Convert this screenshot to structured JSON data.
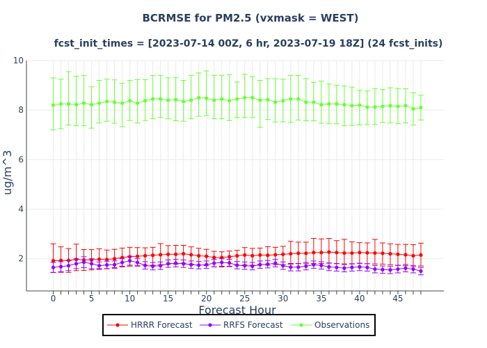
{
  "chart_data": {
    "type": "line",
    "title": "BCRMSE for PM2.5 (vxmask = WEST)",
    "subtitle": "fcst_init_times = [2023-07-14 00Z, 6 hr, 2023-07-19 18Z] (24 fcst_inits)",
    "xlabel": "Forecast Hour",
    "ylabel": "ug/m^3",
    "xlim": [
      -3.5,
      51
    ],
    "ylim": [
      0.7,
      10
    ],
    "xticks": [
      0,
      5,
      10,
      15,
      20,
      25,
      30,
      35,
      40,
      45
    ],
    "yticks": [
      2,
      4,
      6,
      8,
      10
    ],
    "grid": true,
    "legend_position": "bottom-center",
    "x": [
      0,
      1,
      2,
      3,
      4,
      5,
      6,
      7,
      8,
      9,
      10,
      11,
      12,
      13,
      14,
      15,
      16,
      17,
      18,
      19,
      20,
      21,
      22,
      23,
      24,
      25,
      26,
      27,
      28,
      29,
      30,
      31,
      32,
      33,
      34,
      35,
      36,
      37,
      38,
      39,
      40,
      41,
      42,
      43,
      44,
      45,
      46,
      47,
      48
    ],
    "series": [
      {
        "name": "HRRR Forecast",
        "color": "#ff0000",
        "values": [
          1.92,
          1.93,
          1.93,
          1.97,
          1.95,
          1.95,
          1.98,
          1.97,
          2.0,
          2.05,
          2.08,
          2.1,
          2.12,
          2.14,
          2.16,
          2.18,
          2.18,
          2.2,
          2.16,
          2.12,
          2.1,
          2.05,
          2.05,
          2.08,
          2.12,
          2.15,
          2.12,
          2.15,
          2.14,
          2.16,
          2.18,
          2.2,
          2.22,
          2.22,
          2.25,
          2.25,
          2.27,
          2.25,
          2.23,
          2.23,
          2.25,
          2.24,
          2.23,
          2.22,
          2.2,
          2.18,
          2.16,
          2.12,
          2.15
        ],
        "err_low": [
          0.48,
          0.48,
          0.48,
          0.45,
          0.42,
          0.4,
          0.38,
          0.38,
          0.36,
          0.38,
          0.38,
          0.38,
          0.38,
          0.4,
          0.4,
          0.4,
          0.4,
          0.38,
          0.38,
          0.38,
          0.38,
          0.38,
          0.38,
          0.38,
          0.38,
          0.4,
          0.38,
          0.38,
          0.4,
          0.4,
          0.42,
          0.42,
          0.42,
          0.42,
          0.44,
          0.44,
          0.44,
          0.44,
          0.44,
          0.44,
          0.44,
          0.44,
          0.44,
          0.44,
          0.44,
          0.44,
          0.44,
          0.44,
          0.44
        ],
        "err_high": [
          0.68,
          0.55,
          0.48,
          0.62,
          0.42,
          0.42,
          0.42,
          0.38,
          0.38,
          0.38,
          0.38,
          0.35,
          0.32,
          0.32,
          0.45,
          0.35,
          0.36,
          0.34,
          0.32,
          0.3,
          0.28,
          0.25,
          0.23,
          0.23,
          0.22,
          0.3,
          0.3,
          0.28,
          0.35,
          0.3,
          0.32,
          0.5,
          0.45,
          0.45,
          0.57,
          0.55,
          0.55,
          0.48,
          0.55,
          0.45,
          0.4,
          0.4,
          0.55,
          0.42,
          0.4,
          0.4,
          0.42,
          0.45,
          0.48
        ]
      },
      {
        "name": "RRFS Forecast",
        "color": "#8f00ff",
        "values": [
          1.65,
          1.68,
          1.72,
          1.8,
          1.86,
          1.8,
          1.72,
          1.75,
          1.76,
          1.85,
          1.92,
          1.85,
          1.73,
          1.7,
          1.72,
          1.8,
          1.82,
          1.8,
          1.76,
          1.74,
          1.76,
          1.82,
          1.85,
          1.83,
          1.74,
          1.72,
          1.7,
          1.76,
          1.78,
          1.82,
          1.72,
          1.66,
          1.66,
          1.7,
          1.76,
          1.73,
          1.67,
          1.65,
          1.62,
          1.65,
          1.67,
          1.65,
          1.58,
          1.56,
          1.55,
          1.58,
          1.62,
          1.58,
          1.5
        ],
        "err": [
          0.2,
          0.2,
          0.2,
          0.2,
          0.22,
          0.2,
          0.15,
          0.15,
          0.15,
          0.15,
          0.18,
          0.15,
          0.15,
          0.15,
          0.15,
          0.15,
          0.15,
          0.15,
          0.15,
          0.15,
          0.15,
          0.15,
          0.15,
          0.15,
          0.15,
          0.15,
          0.15,
          0.15,
          0.15,
          0.15,
          0.15,
          0.15,
          0.15,
          0.15,
          0.15,
          0.15,
          0.15,
          0.15,
          0.15,
          0.15,
          0.15,
          0.15,
          0.15,
          0.15,
          0.15,
          0.15,
          0.15,
          0.15,
          0.15
        ]
      },
      {
        "name": "Observations",
        "color": "#66ff33",
        "values": [
          8.2,
          8.25,
          8.25,
          8.22,
          8.28,
          8.22,
          8.28,
          8.35,
          8.32,
          8.28,
          8.38,
          8.28,
          8.38,
          8.45,
          8.45,
          8.4,
          8.42,
          8.35,
          8.4,
          8.5,
          8.48,
          8.4,
          8.45,
          8.38,
          8.45,
          8.5,
          8.5,
          8.4,
          8.42,
          8.32,
          8.38,
          8.45,
          8.45,
          8.32,
          8.32,
          8.22,
          8.25,
          8.25,
          8.22,
          8.18,
          8.2,
          8.12,
          8.12,
          8.15,
          8.18,
          8.15,
          8.18,
          8.05,
          8.1
        ],
        "err_low": [
          1.0,
          1.0,
          0.85,
          0.85,
          0.9,
          0.95,
          0.8,
          0.8,
          0.85,
          0.95,
          0.8,
          0.8,
          0.8,
          0.8,
          0.75,
          0.75,
          0.85,
          0.8,
          0.75,
          0.75,
          0.7,
          0.75,
          0.8,
          0.8,
          0.75,
          0.8,
          0.8,
          1.1,
          0.8,
          0.8,
          0.85,
          0.95,
          0.85,
          0.75,
          0.75,
          0.75,
          0.8,
          0.8,
          0.85,
          0.8,
          0.8,
          0.7,
          0.7,
          0.65,
          0.7,
          0.7,
          0.7,
          0.65,
          0.5
        ],
        "err_high": [
          1.1,
          1.0,
          1.3,
          1.15,
          1.12,
          0.72,
          0.92,
          0.9,
          0.9,
          0.8,
          0.82,
          0.95,
          0.85,
          0.95,
          0.95,
          0.9,
          0.9,
          0.85,
          1.0,
          1.0,
          1.1,
          1.0,
          0.95,
          1.05,
          0.68,
          0.95,
          0.85,
          0.8,
          0.85,
          0.95,
          0.87,
          0.95,
          0.95,
          0.95,
          0.8,
          0.95,
          0.8,
          0.75,
          0.75,
          0.75,
          0.6,
          0.65,
          0.75,
          0.68,
          0.72,
          0.72,
          0.68,
          0.65,
          0.5
        ]
      }
    ]
  }
}
